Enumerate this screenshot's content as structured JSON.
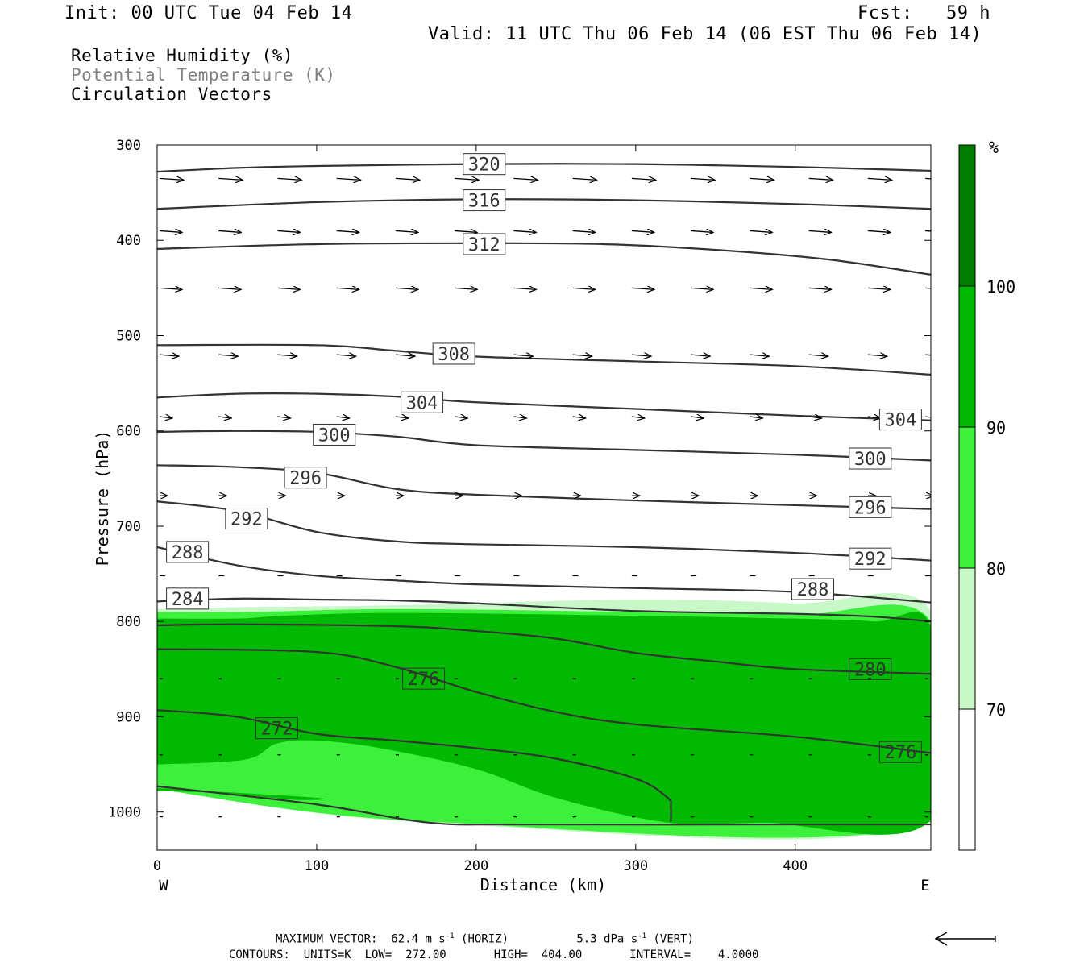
{
  "header": {
    "init": "Init: 00 UTC Tue 04 Feb 14",
    "fcst": "Fcst:   59 h",
    "valid": "Valid: 11 UTC Thu 06 Feb 14 (06 EST Thu 06 Feb 14)"
  },
  "fields": [
    {
      "label": "Relative Humidity (%)",
      "color": "#000000"
    },
    {
      "label": "Potential Temperature (K)",
      "color": "#808080"
    },
    {
      "label": "Circulation Vectors",
      "color": "#000000"
    }
  ],
  "footer": {
    "max_vector_label": "MAXIMUM VECTOR:",
    "horiz": "62.4 m s",
    "horiz_unit_sup": "-1",
    "horiz_tag": "(HORIZ)",
    "vert": "5.3 dPa s",
    "vert_unit_sup": "-1",
    "vert_tag": "(VERT)",
    "contours_line": "CONTOURS:  UNITS=K  LOW=  272.00       HIGH=  404.00       INTERVAL=    4.0000"
  },
  "chart_data": {
    "type": "cross-section",
    "xlabel": "Distance (km)",
    "ylabel": "Pressure (hPa)",
    "xlim": [
      0,
      485
    ],
    "ylim": [
      1040,
      300
    ],
    "x_ticks": [
      0,
      100,
      200,
      300,
      400
    ],
    "y_ticks": [
      300,
      400,
      500,
      600,
      700,
      800,
      900,
      1000
    ],
    "x_end_labels": {
      "left": "W",
      "right": "E"
    },
    "colorbar": {
      "unit": "%",
      "levels": [
        70,
        80,
        90,
        100
      ],
      "colors": [
        "#ffffff",
        "#c8f7c8",
        "#3cf03c",
        "#00b900",
        "#007d00"
      ]
    },
    "rh_regions": [
      {
        "level": "70-80",
        "color": "#c8f7c8",
        "points": [
          [
            0,
            787
          ],
          [
            50,
            785
          ],
          [
            150,
            783
          ],
          [
            300,
            777
          ],
          [
            400,
            781
          ],
          [
            485,
            789
          ],
          [
            485,
            1011
          ],
          [
            170,
            1011
          ],
          [
            0,
            975
          ]
        ]
      },
      {
        "level": "80-90",
        "color": "#3cf03c",
        "points": [
          [
            0,
            790
          ],
          [
            60,
            790
          ],
          [
            150,
            787
          ],
          [
            300,
            790
          ],
          [
            400,
            793
          ],
          [
            485,
            800
          ],
          [
            485,
            1010
          ],
          [
            170,
            1010
          ],
          [
            0,
            976
          ]
        ]
      },
      {
        "level": ">90",
        "color": "#00b900",
        "points": [
          [
            0,
            797
          ],
          [
            50,
            797
          ],
          [
            80,
            794
          ],
          [
            150,
            791
          ],
          [
            300,
            794
          ],
          [
            400,
            797
          ],
          [
            450,
            800
          ],
          [
            485,
            807
          ],
          [
            485,
            1008
          ],
          [
            380,
            1011
          ],
          [
            320,
            1011
          ],
          [
            250,
            985
          ],
          [
            200,
            955
          ],
          [
            140,
            933
          ],
          [
            100,
            925
          ],
          [
            75,
            928
          ],
          [
            55,
            945
          ],
          [
            0,
            950
          ]
        ]
      },
      {
        "level": ">90",
        "color": "#00b900",
        "points": [
          [
            0,
            975
          ],
          [
            100,
            985
          ],
          [
            85,
            987
          ],
          [
            40,
            980
          ],
          [
            0,
            978
          ]
        ]
      }
    ],
    "theta_contours": [
      {
        "value": 320,
        "points": [
          [
            0,
            328
          ],
          [
            50,
            324
          ],
          [
            100,
            322
          ],
          [
            200,
            320
          ],
          [
            300,
            320
          ],
          [
            400,
            323
          ],
          [
            485,
            327
          ]
        ],
        "labels": [
          [
            205,
            320
          ]
        ]
      },
      {
        "value": 316,
        "points": [
          [
            0,
            367
          ],
          [
            100,
            360
          ],
          [
            200,
            357
          ],
          [
            300,
            358
          ],
          [
            400,
            362
          ],
          [
            485,
            367
          ]
        ],
        "labels": [
          [
            205,
            358
          ]
        ]
      },
      {
        "value": 312,
        "points": [
          [
            0,
            409
          ],
          [
            100,
            404
          ],
          [
            200,
            403
          ],
          [
            280,
            404
          ],
          [
            350,
            410
          ],
          [
            420,
            420
          ],
          [
            485,
            436
          ]
        ],
        "labels": [
          [
            205,
            404
          ]
        ]
      },
      {
        "value": 308,
        "points": [
          [
            0,
            510
          ],
          [
            100,
            510
          ],
          [
            150,
            516
          ],
          [
            200,
            522
          ],
          [
            300,
            527
          ],
          [
            400,
            532
          ],
          [
            485,
            541
          ]
        ],
        "labels": [
          [
            186,
            519
          ]
        ]
      },
      {
        "value": 304,
        "points": [
          [
            0,
            565
          ],
          [
            50,
            561
          ],
          [
            100,
            561
          ],
          [
            150,
            564
          ],
          [
            200,
            570
          ],
          [
            300,
            577
          ],
          [
            400,
            584
          ],
          [
            485,
            589
          ]
        ],
        "labels": [
          [
            166,
            570
          ],
          [
            466,
            588
          ]
        ]
      },
      {
        "value": 300,
        "points": [
          [
            0,
            601
          ],
          [
            50,
            600
          ],
          [
            100,
            601
          ],
          [
            150,
            606
          ],
          [
            200,
            615
          ],
          [
            300,
            620
          ],
          [
            400,
            625
          ],
          [
            485,
            631
          ]
        ],
        "labels": [
          [
            111,
            604
          ],
          [
            447,
            629
          ]
        ]
      },
      {
        "value": 296,
        "points": [
          [
            0,
            636
          ],
          [
            50,
            638
          ],
          [
            100,
            644
          ],
          [
            150,
            661
          ],
          [
            200,
            667
          ],
          [
            300,
            673
          ],
          [
            400,
            678
          ],
          [
            485,
            682
          ]
        ],
        "labels": [
          [
            93,
            649
          ],
          [
            447,
            680
          ]
        ]
      },
      {
        "value": 292,
        "points": [
          [
            0,
            674
          ],
          [
            50,
            684
          ],
          [
            100,
            706
          ],
          [
            150,
            716
          ],
          [
            200,
            719
          ],
          [
            300,
            722
          ],
          [
            400,
            728
          ],
          [
            485,
            736
          ]
        ],
        "labels": [
          [
            56,
            692
          ],
          [
            447,
            734
          ]
        ]
      },
      {
        "value": 288,
        "points": [
          [
            0,
            722
          ],
          [
            50,
            741
          ],
          [
            100,
            752
          ],
          [
            150,
            757
          ],
          [
            200,
            761
          ],
          [
            300,
            765
          ],
          [
            400,
            769
          ],
          [
            485,
            780
          ]
        ],
        "labels": [
          [
            19,
            727
          ],
          [
            411,
            766
          ]
        ]
      },
      {
        "value": 284,
        "points": [
          [
            0,
            779
          ],
          [
            50,
            776
          ],
          [
            100,
            777
          ],
          [
            150,
            778
          ],
          [
            200,
            781
          ],
          [
            300,
            789
          ],
          [
            400,
            792
          ],
          [
            450,
            795
          ],
          [
            485,
            800
          ]
        ],
        "labels": [
          [
            19,
            776
          ]
        ]
      },
      {
        "value": 280,
        "points": [
          [
            0,
            804
          ],
          [
            50,
            803
          ],
          [
            150,
            805
          ],
          [
            200,
            810
          ],
          [
            250,
            818
          ],
          [
            300,
            833
          ],
          [
            350,
            842
          ],
          [
            400,
            850
          ],
          [
            485,
            855
          ]
        ],
        "labels": [
          [
            447,
            850
          ]
        ]
      },
      {
        "value": 276,
        "points": [
          [
            0,
            829
          ],
          [
            100,
            832
          ],
          [
            150,
            848
          ],
          [
            200,
            874
          ],
          [
            250,
            895
          ],
          [
            300,
            908
          ],
          [
            400,
            921
          ],
          [
            485,
            938
          ]
        ],
        "labels": [
          [
            167,
            860
          ],
          [
            466,
            937
          ]
        ]
      },
      {
        "value": 272,
        "points": [
          [
            0,
            893
          ],
          [
            50,
            900
          ],
          [
            100,
            918
          ],
          [
            150,
            925
          ],
          [
            200,
            933
          ],
          [
            250,
            944
          ],
          [
            300,
            965
          ],
          [
            320,
            985
          ],
          [
            322,
            995
          ],
          [
            322,
            1010
          ]
        ],
        "labels": [
          [
            75,
            912
          ]
        ]
      },
      {
        "value": 276,
        "points": [
          [
            0,
            973
          ],
          [
            100,
            992
          ],
          [
            170,
            1011
          ],
          [
            230,
            1013
          ],
          [
            400,
            1013
          ],
          [
            485,
            1013
          ]
        ],
        "labels": []
      }
    ],
    "vector_rows": [
      {
        "p": 335,
        "x": [
          0,
          37,
          74,
          111,
          148,
          185,
          222,
          259,
          296,
          333,
          370,
          407,
          444,
          480
        ],
        "len": 28
      },
      {
        "p": 390,
        "x": [
          0,
          37,
          74,
          111,
          148,
          185,
          222,
          259,
          296,
          333,
          370,
          407,
          444,
          480
        ],
        "len": 26
      },
      {
        "p": 450,
        "x": [
          0,
          37,
          74,
          111,
          148,
          185,
          222,
          259,
          296,
          333,
          370,
          407,
          444,
          480
        ],
        "len": 26
      },
      {
        "p": 520,
        "x": [
          0,
          37,
          74,
          111,
          148,
          185,
          222,
          259,
          296,
          333,
          370,
          407,
          444,
          480
        ],
        "len": 22
      },
      {
        "p": 585,
        "x": [
          0,
          37,
          74,
          111,
          148,
          185,
          222,
          259,
          296,
          333,
          370,
          407,
          444,
          480
        ],
        "len": 14
      },
      {
        "p": 668,
        "x": [
          0,
          37,
          74,
          111,
          148,
          185,
          222,
          259,
          296,
          333,
          370,
          407,
          444,
          480
        ],
        "len": 8
      },
      {
        "p": 752,
        "x": [
          0,
          37,
          74,
          111,
          148,
          185,
          222,
          259,
          296,
          333,
          370,
          407,
          444,
          480
        ],
        "len": 5
      },
      {
        "p": 860,
        "x": [
          0,
          37,
          74,
          111,
          148,
          185,
          222,
          259,
          296,
          333,
          370,
          407,
          444,
          480
        ],
        "len": 2
      },
      {
        "p": 940,
        "x": [
          0,
          37,
          74,
          111,
          148,
          185,
          222,
          259,
          296,
          333,
          370,
          407,
          444,
          480
        ],
        "len": 2
      },
      {
        "p": 1005,
        "x": [
          0,
          37,
          74,
          111,
          148,
          185,
          222,
          259,
          296,
          333,
          370,
          407,
          444,
          480
        ],
        "len": 2
      }
    ]
  }
}
